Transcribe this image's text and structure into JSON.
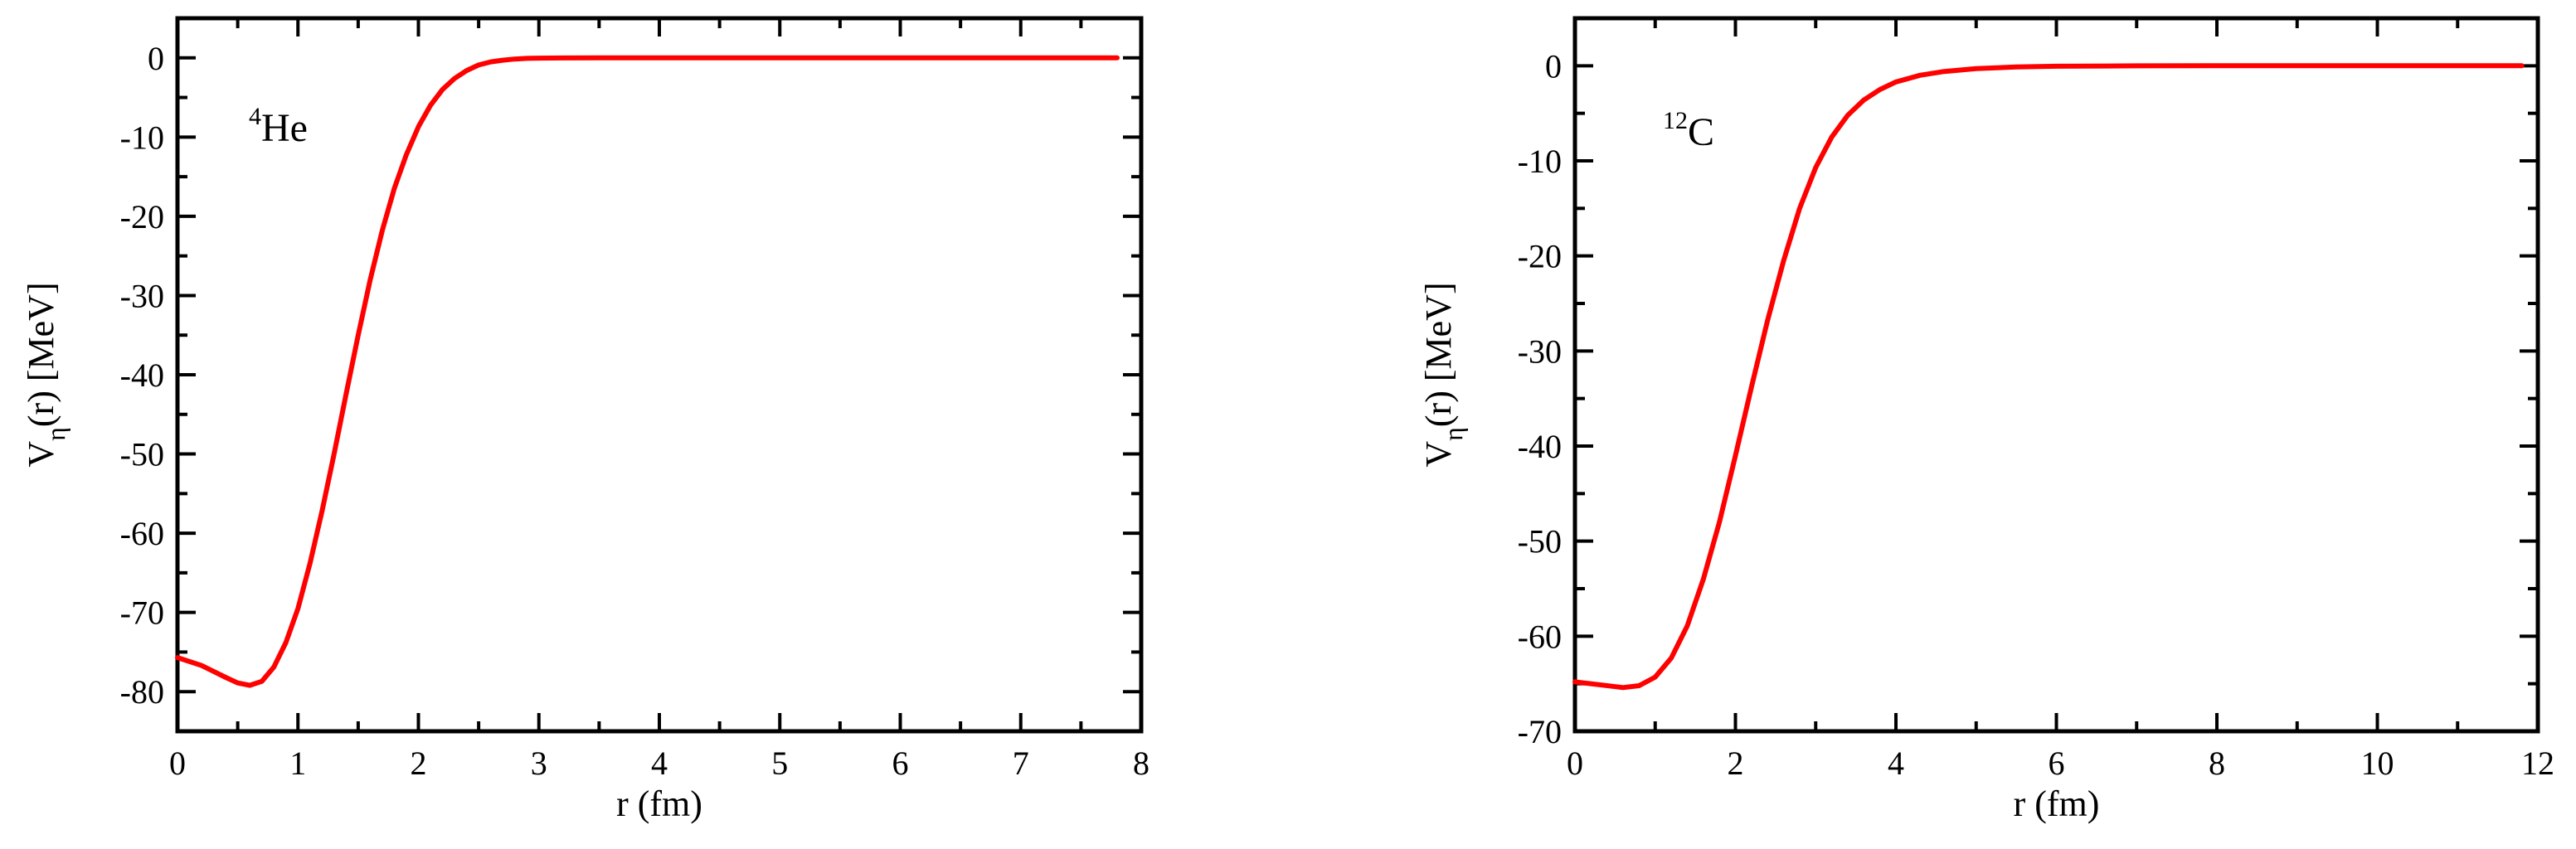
{
  "chart_data": [
    {
      "type": "line",
      "panel": "left",
      "annotation": {
        "sup": "4",
        "main": "He"
      },
      "xlabel": "r (fm)",
      "ylabel": {
        "main": "V",
        "sub": "η",
        "rest": "(r)  [MeV]"
      },
      "xlim": [
        0,
        8
      ],
      "ylim": [
        -85,
        5
      ],
      "xticks": [
        0,
        1,
        2,
        3,
        4,
        5,
        6,
        7,
        8
      ],
      "yticks": [
        0,
        -10,
        -20,
        -30,
        -40,
        -50,
        -60,
        -70,
        -80
      ],
      "series": [
        {
          "color": "#ff0000",
          "x": [
            0,
            0.2,
            0.4,
            0.5,
            0.6,
            0.7,
            0.8,
            0.9,
            1.0,
            1.1,
            1.2,
            1.3,
            1.4,
            1.5,
            1.6,
            1.7,
            1.8,
            1.9,
            2.0,
            2.1,
            2.2,
            2.3,
            2.4,
            2.5,
            2.6,
            2.7,
            2.8,
            2.9,
            3.0,
            3.2,
            3.5,
            4.0,
            5.0,
            6.0,
            7.0,
            7.8
          ],
          "y": [
            -75.7,
            -76.7,
            -78.2,
            -78.9,
            -79.2,
            -78.7,
            -76.9,
            -73.8,
            -69.5,
            -63.8,
            -57.2,
            -50.0,
            -42.4,
            -35.0,
            -28.0,
            -21.8,
            -16.5,
            -12.2,
            -8.7,
            -6.0,
            -4.0,
            -2.6,
            -1.6,
            -0.9,
            -0.5,
            -0.3,
            -0.15,
            -0.07,
            -0.03,
            -0.01,
            0,
            0,
            0,
            0,
            0,
            0
          ]
        }
      ]
    },
    {
      "type": "line",
      "panel": "right",
      "annotation": {
        "sup": "12",
        "main": "C"
      },
      "xlabel": "r (fm)",
      "ylabel": {
        "main": "V",
        "sub": "η",
        "rest": "(r)  [MeV]"
      },
      "xlim": [
        0,
        12
      ],
      "ylim": [
        -70,
        5
      ],
      "xticks": [
        0,
        2,
        4,
        6,
        8,
        10,
        12
      ],
      "yticks": [
        0,
        -10,
        -20,
        -30,
        -40,
        -50,
        -60,
        -70
      ],
      "series": [
        {
          "color": "#ff0000",
          "x": [
            0,
            0.3,
            0.6,
            0.8,
            1.0,
            1.2,
            1.4,
            1.6,
            1.8,
            2.0,
            2.2,
            2.4,
            2.6,
            2.8,
            3.0,
            3.2,
            3.4,
            3.6,
            3.8,
            4.0,
            4.3,
            4.6,
            5.0,
            5.5,
            6.0,
            7.0,
            8.0,
            10.0,
            11.8
          ],
          "y": [
            -64.8,
            -65.1,
            -65.4,
            -65.2,
            -64.3,
            -62.3,
            -58.9,
            -54.0,
            -48.0,
            -41.0,
            -33.8,
            -26.8,
            -20.5,
            -15.0,
            -10.7,
            -7.5,
            -5.2,
            -3.6,
            -2.5,
            -1.7,
            -1.0,
            -0.6,
            -0.3,
            -0.12,
            -0.05,
            -0.01,
            0,
            0,
            0
          ]
        }
      ]
    }
  ]
}
